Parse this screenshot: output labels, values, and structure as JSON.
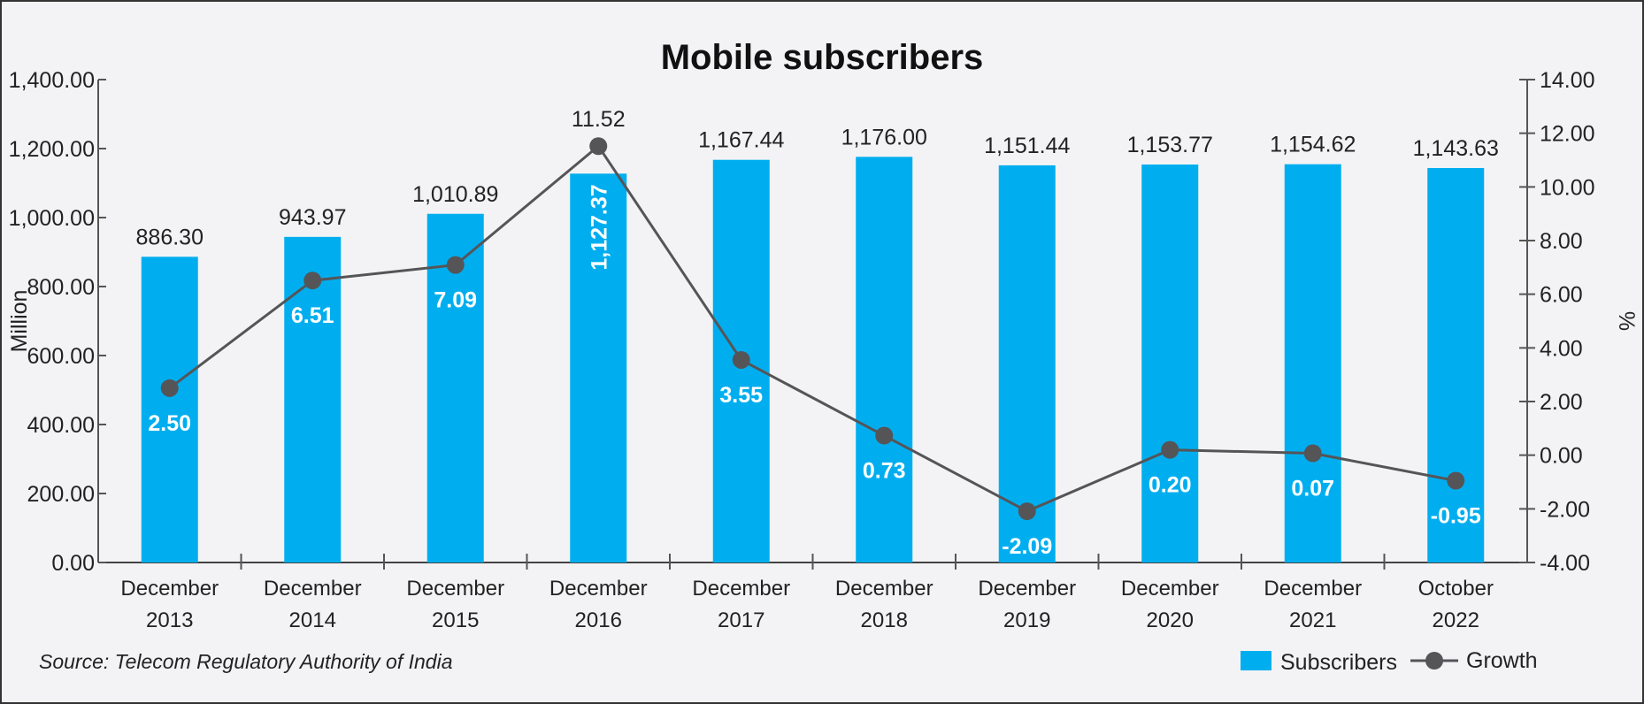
{
  "chart_data": {
    "type": "bar+line",
    "title": "Mobile subscribers",
    "ylabel": "Million",
    "y2label": "%",
    "ylim": [
      0,
      1400
    ],
    "y2lim": [
      -4,
      14
    ],
    "yticks": [
      "0.00",
      "200.00",
      "400.00",
      "600.00",
      "800.00",
      "1,000.00",
      "1,200.00",
      "1,400.00"
    ],
    "y2ticks": [
      "-4.00",
      "-2.00",
      "0.00",
      "2.00",
      "4.00",
      "6.00",
      "8.00",
      "10.00",
      "12.00",
      "14.00"
    ],
    "categories": [
      [
        "December",
        "2013"
      ],
      [
        "December",
        "2014"
      ],
      [
        "December",
        "2015"
      ],
      [
        "December",
        "2016"
      ],
      [
        "December",
        "2017"
      ],
      [
        "December",
        "2018"
      ],
      [
        "December",
        "2019"
      ],
      [
        "December",
        "2020"
      ],
      [
        "December",
        "2021"
      ],
      [
        "October",
        "2022"
      ]
    ],
    "series": [
      {
        "name": "Subscribers",
        "type": "bar",
        "color": "#00AEEF",
        "axis": "left",
        "values": [
          886.3,
          943.97,
          1010.89,
          1127.37,
          1167.44,
          1176.0,
          1151.44,
          1153.77,
          1154.62,
          1143.63
        ],
        "labels": [
          "886.30",
          "943.97",
          "1,010.89",
          "1,127.37",
          "1,167.44",
          "1,176.00",
          "1,151.44",
          "1,153.77",
          "1,154.62",
          "1,143.63"
        ]
      },
      {
        "name": "Growth",
        "type": "line",
        "color": "#555558",
        "axis": "right",
        "values": [
          2.5,
          6.51,
          7.09,
          11.52,
          3.55,
          0.73,
          -2.09,
          0.2,
          0.07,
          -0.95
        ],
        "labels": [
          "2.50",
          "6.51",
          "7.09",
          "11.52",
          "3.55",
          "0.73",
          "-2.09",
          "0.20",
          "0.07",
          "-0.95"
        ]
      }
    ],
    "legend": "bottom-right",
    "grid": false,
    "source": "Source: Telecom Regulatory Authority of India"
  }
}
